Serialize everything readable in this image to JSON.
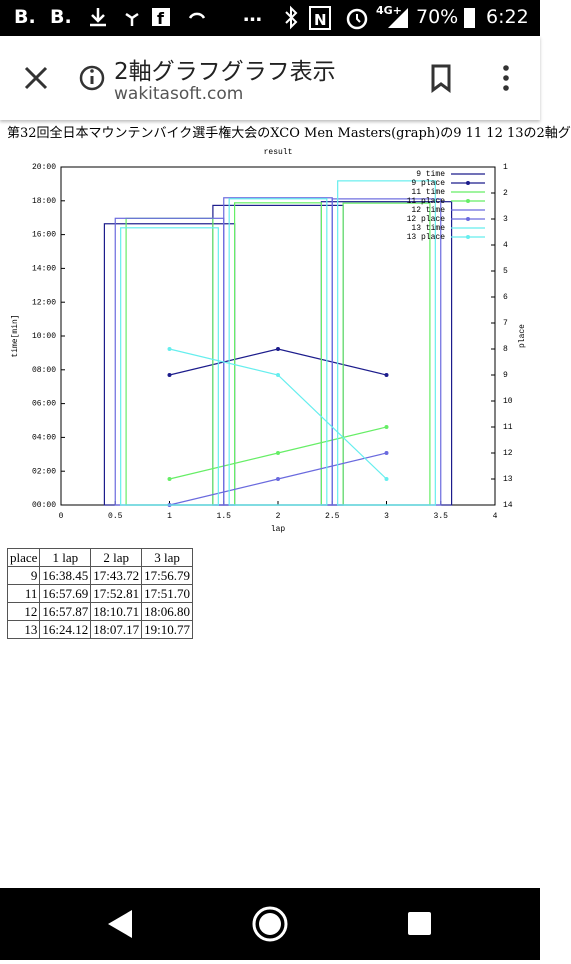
{
  "status_bar": {
    "left_icons": [
      "B.",
      "B."
    ],
    "more": "…",
    "network": "4G+",
    "battery": "70%",
    "time": "6:22"
  },
  "header": {
    "title": "2軸グラフグラフ表示",
    "url": "wakitasoft.com"
  },
  "page": {
    "heading": "第32回全日本マウンテンバイク選手権大会のXCO Men Masters(graph)の9 11 12 13の2軸グ"
  },
  "chart_data": {
    "type": "bar",
    "title": "result",
    "x_label": "lap",
    "y_label": "time[min]",
    "y2_label": "place",
    "x": [
      1,
      2,
      3
    ],
    "xlim": [
      0,
      4
    ],
    "xticks": [
      0,
      0.5,
      1,
      1.5,
      2,
      2.5,
      3,
      3.5,
      4
    ],
    "ylim": [
      0,
      20
    ],
    "yticks": [
      {
        "value": 0,
        "label": "00:00"
      },
      {
        "value": 2,
        "label": "02:00"
      },
      {
        "value": 4,
        "label": "04:00"
      },
      {
        "value": 6,
        "label": "06:00"
      },
      {
        "value": 8,
        "label": "08:00"
      },
      {
        "value": 10,
        "label": "10:00"
      },
      {
        "value": 12,
        "label": "12:00"
      },
      {
        "value": 14,
        "label": "14:00"
      },
      {
        "value": 16,
        "label": "16:00"
      },
      {
        "value": 18,
        "label": "18:00"
      },
      {
        "value": 20,
        "label": "20:00"
      }
    ],
    "y2lim": [
      14,
      1
    ],
    "y2ticks": [
      1,
      2,
      3,
      4,
      5,
      6,
      7,
      8,
      9,
      10,
      11,
      12,
      13,
      14
    ],
    "legend": "top-right",
    "series": [
      {
        "name": "9 time",
        "color": "#1c1c8c",
        "values": [
          16.6408,
          17.7287,
          17.9465
        ]
      },
      {
        "name": "9 place",
        "color": "#1c1c8c",
        "axis": "y2",
        "values": [
          9,
          8,
          9
        ]
      },
      {
        "name": "11 time",
        "color": "#66ee66",
        "values": [
          16.9615,
          17.8802,
          17.8617
        ]
      },
      {
        "name": "11 place",
        "color": "#66ee66",
        "axis": "y2",
        "values": [
          13,
          12,
          11
        ]
      },
      {
        "name": "12 time",
        "color": "#6a6ade",
        "values": [
          16.9645,
          18.1785,
          18.1133
        ]
      },
      {
        "name": "12 place",
        "color": "#6a6ade",
        "axis": "y2",
        "values": [
          14,
          13,
          12
        ]
      },
      {
        "name": "13 time",
        "color": "#66eeee",
        "values": [
          16.402,
          18.1195,
          19.1795
        ]
      },
      {
        "name": "13 place",
        "color": "#66eeee",
        "axis": "y2",
        "values": [
          8,
          9,
          13
        ]
      }
    ]
  },
  "table": {
    "header": [
      "place",
      "1 lap",
      "2 lap",
      "3 lap"
    ],
    "rows": [
      [
        9,
        "16:38.45",
        "17:43.72",
        "17:56.79"
      ],
      [
        11,
        "16:57.69",
        "17:52.81",
        "17:51.70"
      ],
      [
        12,
        "16:57.87",
        "18:10.71",
        "18:06.80"
      ],
      [
        13,
        "16:24.12",
        "18:07.17",
        "19:10.77"
      ]
    ]
  }
}
